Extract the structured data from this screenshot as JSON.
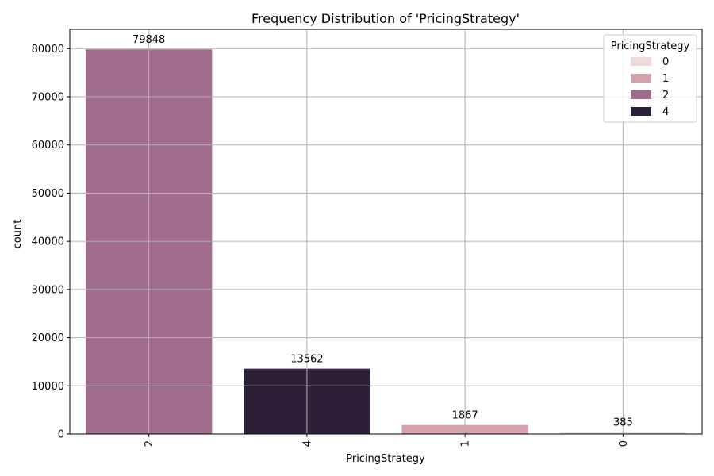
{
  "chart_data": {
    "type": "bar",
    "title": "Frequency Distribution of 'PricingStrategy'",
    "xlabel": "PricingStrategy",
    "ylabel": "count",
    "categories": [
      "2",
      "4",
      "1",
      "0"
    ],
    "values": [
      79848,
      13562,
      1867,
      385
    ],
    "data_labels": [
      "79848",
      "13562",
      "1867",
      "385"
    ],
    "ylim": [
      0,
      84000
    ],
    "yticks": [
      0,
      10000,
      20000,
      30000,
      40000,
      50000,
      60000,
      70000,
      80000
    ],
    "grid": true,
    "x_tick_rotation": "vertical",
    "legend": {
      "title": "PricingStrategy",
      "placement": "top-right",
      "entries": [
        {
          "label": "0",
          "color": "#eddbd8"
        },
        {
          "label": "1",
          "color": "#d4a0ab"
        },
        {
          "label": "2",
          "color": "#a06e8c"
        },
        {
          "label": "4",
          "color": "#2e1f3b"
        }
      ]
    },
    "bar_colors": [
      "#a06e8c",
      "#2e1f3b",
      "#d4a0ab",
      "#eddbd8"
    ]
  }
}
